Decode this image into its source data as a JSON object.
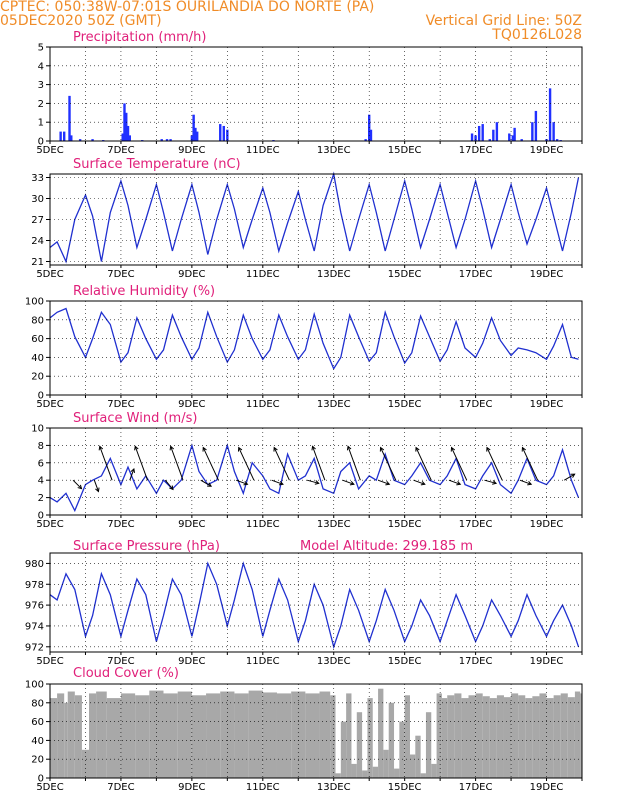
{
  "header": {
    "left_line1": "CPTEC:   050:38W-07:01S   OURILANDIA DO NORTE (PA)",
    "left_line2": "05DEC2020 50Z (GMT)",
    "right_line1": "Vertical Grid Line: 50Z",
    "right_line2": "TQ0126L028"
  },
  "colors": {
    "header": "#f08c28",
    "title": "#e0207a",
    "line": "#2030d0",
    "bar": "#2030ff",
    "cloud": "#a8a8a8",
    "grid": "#000000"
  },
  "x_axis": {
    "labels": [
      "5DEC",
      "7DEC",
      "9DEC",
      "11DEC",
      "13DEC",
      "15DEC",
      "17DEC",
      "19DEC"
    ],
    "day_range": [
      5,
      20
    ]
  },
  "chart_data": [
    {
      "type": "bar",
      "title": "Precipitation (mm/h)",
      "ylim": [
        0,
        5
      ],
      "yticks": [
        0,
        1,
        2,
        3,
        4,
        5
      ],
      "x": [
        5.3,
        5.4,
        5.55,
        5.6,
        5.85,
        6.2,
        6.5,
        7.05,
        7.1,
        7.15,
        7.2,
        7.25,
        7.6,
        8.15,
        8.3,
        8.4,
        9.0,
        9.05,
        9.1,
        9.15,
        9.8,
        9.9,
        10.0,
        11.3,
        13.9,
        14.0,
        14.05,
        16.9,
        17.0,
        17.1,
        17.2,
        17.4,
        17.5,
        17.6,
        17.95,
        18.05,
        18.1,
        18.3,
        18.6,
        18.7,
        19.0,
        19.1,
        19.2,
        19.3,
        19.4
      ],
      "values": [
        0.5,
        0.5,
        2.4,
        0.3,
        0.1,
        0.1,
        0.05,
        0.4,
        2.0,
        1.5,
        0.8,
        0.3,
        0.05,
        0.1,
        0.1,
        0.1,
        0.3,
        1.4,
        0.7,
        0.5,
        0.9,
        0.8,
        0.6,
        0.05,
        0.1,
        1.4,
        0.6,
        0.4,
        0.3,
        0.8,
        0.9,
        0.1,
        0.6,
        1.0,
        0.4,
        0.3,
        0.7,
        0.1,
        1.0,
        1.6,
        0.1,
        2.8,
        1.0,
        0.1,
        0.05
      ]
    },
    {
      "type": "line",
      "title": "Surface Temperature (nC)",
      "ylim": [
        20.5,
        33.5
      ],
      "yticks": [
        21,
        24,
        27,
        30,
        33
      ],
      "x": [
        5.0,
        5.2,
        5.45,
        5.7,
        6.0,
        6.2,
        6.45,
        6.7,
        7.0,
        7.2,
        7.45,
        7.7,
        8.0,
        8.2,
        8.45,
        8.7,
        9.0,
        9.2,
        9.45,
        9.7,
        10.0,
        10.2,
        10.45,
        10.7,
        11.0,
        11.2,
        11.45,
        11.7,
        12.0,
        12.2,
        12.45,
        12.7,
        13.0,
        13.2,
        13.45,
        13.7,
        14.0,
        14.2,
        14.45,
        14.7,
        15.0,
        15.2,
        15.45,
        15.7,
        16.0,
        16.2,
        16.45,
        16.7,
        17.0,
        17.2,
        17.45,
        17.7,
        18.0,
        18.2,
        18.45,
        18.7,
        19.0,
        19.2,
        19.45,
        19.7,
        19.9
      ],
      "values": [
        23.0,
        23.8,
        21.0,
        27.0,
        30.5,
        27.5,
        21.0,
        28.0,
        32.5,
        29.0,
        23.0,
        27.0,
        32.0,
        28.0,
        22.5,
        27.0,
        32.0,
        28.0,
        22.0,
        27.0,
        32.0,
        28.5,
        23.0,
        27.0,
        31.5,
        28.0,
        22.5,
        26.5,
        31.0,
        27.0,
        22.5,
        29.0,
        33.5,
        28.0,
        22.5,
        27.0,
        32.0,
        28.0,
        22.5,
        27.0,
        32.5,
        28.5,
        23.0,
        27.0,
        32.0,
        28.0,
        23.0,
        27.0,
        32.5,
        28.5,
        23.0,
        27.0,
        32.0,
        28.0,
        23.5,
        27.0,
        31.5,
        27.5,
        22.5,
        28.0,
        33.0
      ]
    },
    {
      "type": "line",
      "title": "Relative Humidity (%)",
      "ylim": [
        0,
        100
      ],
      "yticks": [
        0,
        20,
        40,
        60,
        80,
        100
      ],
      "x": [
        5.0,
        5.2,
        5.45,
        5.7,
        6.0,
        6.2,
        6.45,
        6.7,
        7.0,
        7.2,
        7.45,
        7.7,
        8.0,
        8.2,
        8.45,
        8.7,
        9.0,
        9.2,
        9.45,
        9.7,
        10.0,
        10.2,
        10.45,
        10.7,
        11.0,
        11.2,
        11.45,
        11.7,
        12.0,
        12.2,
        12.45,
        12.7,
        13.0,
        13.2,
        13.45,
        13.7,
        14.0,
        14.2,
        14.45,
        14.7,
        15.0,
        15.2,
        15.45,
        15.7,
        16.0,
        16.2,
        16.45,
        16.7,
        17.0,
        17.2,
        17.45,
        17.7,
        18.0,
        18.2,
        18.45,
        18.7,
        19.0,
        19.2,
        19.45,
        19.7,
        19.9
      ],
      "values": [
        82,
        88,
        92,
        62,
        40,
        60,
        88,
        75,
        35,
        45,
        82,
        60,
        38,
        48,
        85,
        62,
        38,
        50,
        88,
        62,
        35,
        48,
        85,
        60,
        38,
        48,
        85,
        62,
        38,
        48,
        86,
        55,
        28,
        40,
        85,
        62,
        36,
        45,
        88,
        62,
        34,
        45,
        84,
        62,
        36,
        48,
        78,
        50,
        40,
        55,
        82,
        58,
        42,
        50,
        48,
        45,
        38,
        52,
        75,
        40,
        38
      ]
    },
    {
      "type": "line",
      "title": "Surface Wind (m/s)",
      "ylim": [
        0,
        10
      ],
      "yticks": [
        0,
        2,
        4,
        6,
        8,
        10
      ],
      "x": [
        5.0,
        5.2,
        5.45,
        5.7,
        6.0,
        6.2,
        6.45,
        6.7,
        7.0,
        7.2,
        7.45,
        7.7,
        8.0,
        8.2,
        8.45,
        8.7,
        9.0,
        9.2,
        9.45,
        9.7,
        10.0,
        10.2,
        10.45,
        10.7,
        11.0,
        11.2,
        11.45,
        11.7,
        12.0,
        12.2,
        12.45,
        12.7,
        13.0,
        13.2,
        13.45,
        13.7,
        14.0,
        14.2,
        14.45,
        14.7,
        15.0,
        15.2,
        15.45,
        15.7,
        16.0,
        16.2,
        16.45,
        16.7,
        17.0,
        17.2,
        17.45,
        17.7,
        18.0,
        18.2,
        18.45,
        18.7,
        19.0,
        19.2,
        19.45,
        19.7,
        19.9
      ],
      "values": [
        2.0,
        1.5,
        2.5,
        0.5,
        3.5,
        4.0,
        4.5,
        6.5,
        3.5,
        5.5,
        3.0,
        4.5,
        2.5,
        4.0,
        3.0,
        4.0,
        8.0,
        5.0,
        3.5,
        4.0,
        8.0,
        5.0,
        2.5,
        6.0,
        4.5,
        3.0,
        2.5,
        7.0,
        4.0,
        4.5,
        6.5,
        3.0,
        2.5,
        5.0,
        6.0,
        3.0,
        4.5,
        4.0,
        7.0,
        4.0,
        3.5,
        4.5,
        6.0,
        4.0,
        3.5,
        4.5,
        6.5,
        3.5,
        3.0,
        4.5,
        6.0,
        3.5,
        2.5,
        4.0,
        6.5,
        4.0,
        3.5,
        4.5,
        7.5,
        4.0,
        2.0
      ]
    },
    {
      "type": "line",
      "title": "Surface Pressure (hPa)",
      "annotation": "Model Altitude: 299.185 m",
      "ylim": [
        971.5,
        981
      ],
      "yticks": [
        972,
        974,
        976,
        978,
        980
      ],
      "x": [
        5.0,
        5.2,
        5.45,
        5.7,
        6.0,
        6.2,
        6.45,
        6.7,
        7.0,
        7.2,
        7.45,
        7.7,
        8.0,
        8.2,
        8.45,
        8.7,
        9.0,
        9.2,
        9.45,
        9.7,
        10.0,
        10.2,
        10.45,
        10.7,
        11.0,
        11.2,
        11.45,
        11.7,
        12.0,
        12.2,
        12.45,
        12.7,
        13.0,
        13.2,
        13.45,
        13.7,
        14.0,
        14.2,
        14.45,
        14.7,
        15.0,
        15.2,
        15.45,
        15.7,
        16.0,
        16.2,
        16.45,
        16.7,
        17.0,
        17.2,
        17.45,
        17.7,
        18.0,
        18.2,
        18.45,
        18.7,
        19.0,
        19.2,
        19.45,
        19.7,
        19.9
      ],
      "values": [
        977.0,
        976.5,
        979.0,
        977.5,
        973.0,
        975.0,
        979.0,
        977.0,
        973.0,
        975.5,
        978.5,
        977.0,
        972.5,
        975.0,
        978.5,
        977.0,
        973.0,
        976.0,
        980.0,
        978.0,
        974.0,
        976.5,
        980.0,
        977.5,
        973.0,
        975.5,
        978.5,
        976.5,
        972.5,
        974.5,
        978.0,
        976.0,
        972.0,
        974.0,
        977.5,
        975.5,
        972.5,
        974.5,
        977.5,
        975.5,
        972.5,
        974.0,
        976.5,
        975.0,
        972.5,
        974.5,
        977.0,
        975.0,
        972.5,
        974.0,
        976.5,
        975.0,
        973.0,
        974.5,
        977.0,
        975.0,
        973.0,
        974.5,
        976.0,
        974.0,
        972.0
      ]
    },
    {
      "type": "area",
      "title": "Cloud Cover (%)",
      "ylim": [
        0,
        100
      ],
      "yticks": [
        0,
        20,
        40,
        60,
        80,
        100
      ],
      "x": [
        5.0,
        5.2,
        5.4,
        5.5,
        5.7,
        5.9,
        6.1,
        6.3,
        6.6,
        7.0,
        7.4,
        7.8,
        8.2,
        8.6,
        9.0,
        9.4,
        9.8,
        10.2,
        10.6,
        11.0,
        11.4,
        11.8,
        12.2,
        12.6,
        12.9,
        13.05,
        13.2,
        13.35,
        13.5,
        13.65,
        13.8,
        13.95,
        14.1,
        14.25,
        14.4,
        14.55,
        14.7,
        14.85,
        15.0,
        15.15,
        15.3,
        15.45,
        15.6,
        15.75,
        15.9,
        16.05,
        16.2,
        16.4,
        16.6,
        16.8,
        17.0,
        17.2,
        17.4,
        17.6,
        17.8,
        18.0,
        18.2,
        18.4,
        18.6,
        18.8,
        19.0,
        19.2,
        19.4,
        19.6,
        19.8,
        19.95
      ],
      "values": [
        85,
        90,
        80,
        92,
        88,
        30,
        90,
        92,
        85,
        90,
        88,
        93,
        90,
        92,
        88,
        90,
        92,
        90,
        93,
        91,
        90,
        92,
        90,
        92,
        88,
        5,
        60,
        90,
        15,
        70,
        8,
        85,
        12,
        95,
        30,
        80,
        10,
        60,
        88,
        25,
        45,
        5,
        70,
        15,
        90,
        85,
        88,
        90,
        85,
        88,
        90,
        87,
        85,
        88,
        86,
        90,
        88,
        85,
        87,
        90,
        85,
        88,
        90,
        86,
        92,
        90
      ]
    }
  ],
  "wind_arrows": [
    {
      "day": 5.65,
      "dir_deg": 45,
      "len": 1.0
    },
    {
      "day": 6.25,
      "dir_deg": 20,
      "len": 1.0
    },
    {
      "day": 6.75,
      "dir_deg": 200,
      "len": 3.0
    },
    {
      "day": 7.25,
      "dir_deg": 160,
      "len": 1.0
    },
    {
      "day": 7.75,
      "dir_deg": 200,
      "len": 3.0
    },
    {
      "day": 8.25,
      "dir_deg": 40,
      "len": 1.0
    },
    {
      "day": 8.75,
      "dir_deg": 200,
      "len": 3.0
    },
    {
      "day": 9.25,
      "dir_deg": 60,
      "len": 1.0
    },
    {
      "day": 9.75,
      "dir_deg": 205,
      "len": 3.0
    },
    {
      "day": 10.25,
      "dir_deg": 70,
      "len": 1.0
    },
    {
      "day": 10.75,
      "dir_deg": 205,
      "len": 3.0
    },
    {
      "day": 11.25,
      "dir_deg": 70,
      "len": 1.0
    },
    {
      "day": 11.75,
      "dir_deg": 205,
      "len": 3.0
    },
    {
      "day": 12.25,
      "dir_deg": 75,
      "len": 1.0
    },
    {
      "day": 12.75,
      "dir_deg": 200,
      "len": 3.0
    },
    {
      "day": 13.25,
      "dir_deg": 70,
      "len": 1.0
    },
    {
      "day": 13.75,
      "dir_deg": 200,
      "len": 3.0
    },
    {
      "day": 14.25,
      "dir_deg": 70,
      "len": 1.0
    },
    {
      "day": 14.75,
      "dir_deg": 205,
      "len": 3.0
    },
    {
      "day": 15.25,
      "dir_deg": 70,
      "len": 1.0
    },
    {
      "day": 15.75,
      "dir_deg": 205,
      "len": 3.0
    },
    {
      "day": 16.25,
      "dir_deg": 70,
      "len": 1.0
    },
    {
      "day": 16.75,
      "dir_deg": 205,
      "len": 3.0
    },
    {
      "day": 17.25,
      "dir_deg": 75,
      "len": 1.0
    },
    {
      "day": 17.75,
      "dir_deg": 205,
      "len": 3.0
    },
    {
      "day": 18.25,
      "dir_deg": 70,
      "len": 1.0
    },
    {
      "day": 18.75,
      "dir_deg": 205,
      "len": 3.0
    },
    {
      "day": 19.5,
      "dir_deg": 120,
      "len": 1.0
    }
  ]
}
